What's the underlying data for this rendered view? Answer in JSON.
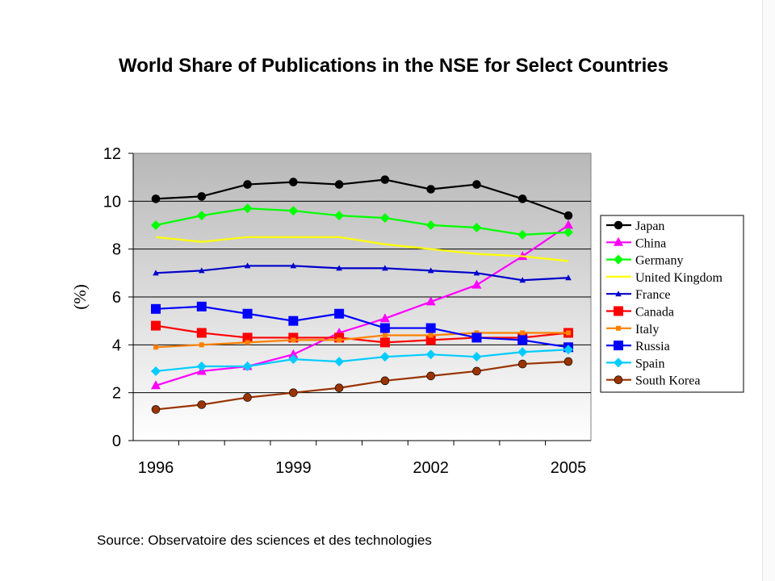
{
  "title": "World Share of Publications in the NSE for Select Countries",
  "source": "Source: Observatoire des sciences et des technologies",
  "chart_data": {
    "type": "line",
    "title": "World Share of Publications in the NSE for Select Countries",
    "xlabel": "",
    "ylabel": "(%)",
    "x": [
      1996,
      1997,
      1998,
      1999,
      2000,
      2001,
      2002,
      2003,
      2004,
      2005
    ],
    "x_tick_labels": [
      "1996",
      "1999",
      "2002",
      "2005"
    ],
    "y_ticks": [
      "0",
      "2",
      "4",
      "6",
      "8",
      "10",
      "12"
    ],
    "ylim": [
      0,
      12
    ],
    "grid": "horizontal",
    "legend_position": "right",
    "series": [
      {
        "name": "Japan",
        "color": "#000000",
        "marker": "circle",
        "values": [
          10.1,
          10.2,
          10.7,
          10.8,
          10.7,
          10.9,
          10.5,
          10.7,
          10.1,
          9.4
        ]
      },
      {
        "name": "China",
        "color": "#ff00ff",
        "marker": "triangle",
        "values": [
          2.3,
          2.9,
          3.1,
          3.6,
          4.5,
          5.1,
          5.8,
          6.5,
          7.7,
          9.0
        ]
      },
      {
        "name": "Germany",
        "color": "#00ff00",
        "marker": "diamond",
        "values": [
          9.0,
          9.4,
          9.7,
          9.6,
          9.4,
          9.3,
          9.0,
          8.9,
          8.6,
          8.7
        ]
      },
      {
        "name": "United Kingdom",
        "color": "#ffff00",
        "marker": "none",
        "values": [
          8.5,
          8.3,
          8.5,
          8.5,
          8.5,
          8.2,
          8.0,
          7.8,
          7.7,
          7.5
        ]
      },
      {
        "name": "France",
        "color": "#0000cc",
        "marker": "small-triangle",
        "values": [
          7.0,
          7.1,
          7.3,
          7.3,
          7.2,
          7.2,
          7.1,
          7.0,
          6.7,
          6.8
        ]
      },
      {
        "name": "Canada",
        "color": "#ff0000",
        "marker": "square",
        "values": [
          4.8,
          4.5,
          4.3,
          4.3,
          4.3,
          4.1,
          4.2,
          4.3,
          4.3,
          4.5
        ]
      },
      {
        "name": "Italy",
        "color": "#ff8000",
        "marker": "small-square",
        "values": [
          3.9,
          4.0,
          4.1,
          4.2,
          4.2,
          4.4,
          4.4,
          4.5,
          4.5,
          4.5
        ]
      },
      {
        "name": "Russia",
        "color": "#0000ff",
        "marker": "square",
        "values": [
          5.5,
          5.6,
          5.3,
          5.0,
          5.3,
          4.7,
          4.7,
          4.3,
          4.2,
          3.9
        ]
      },
      {
        "name": "Spain",
        "color": "#00ccff",
        "marker": "diamond",
        "values": [
          2.9,
          3.1,
          3.1,
          3.4,
          3.3,
          3.5,
          3.6,
          3.5,
          3.7,
          3.8
        ]
      },
      {
        "name": "South Korea",
        "color": "#993300",
        "marker": "circle",
        "values": [
          1.3,
          1.5,
          1.8,
          2.0,
          2.2,
          2.5,
          2.7,
          2.9,
          3.2,
          3.3
        ]
      }
    ]
  }
}
